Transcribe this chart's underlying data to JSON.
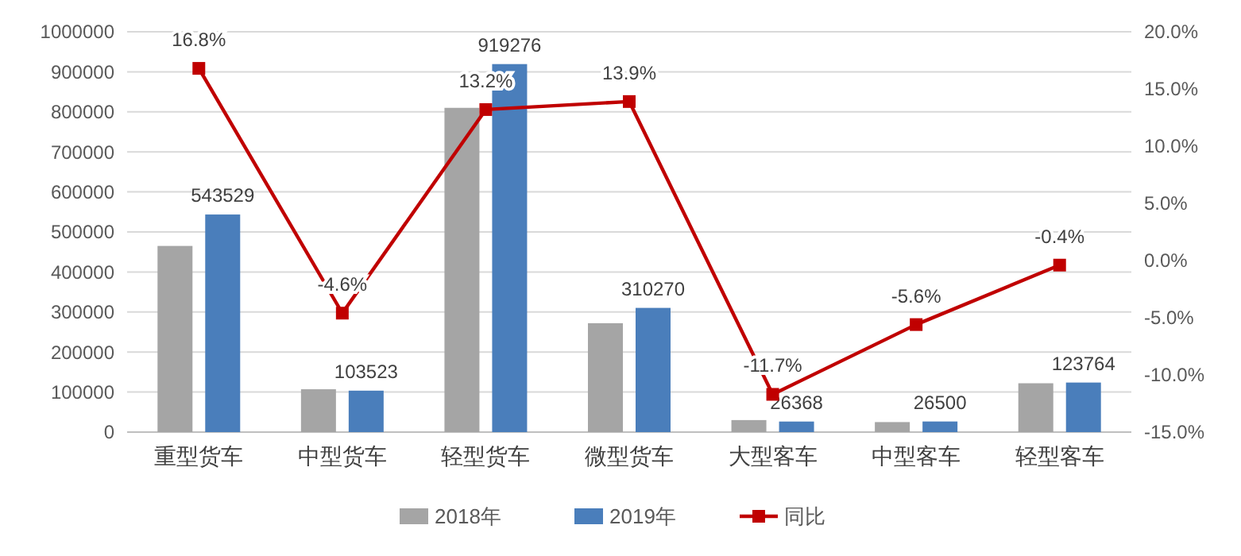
{
  "chart_data": {
    "type": "bar",
    "categories": [
      "重型货车",
      "中型货车",
      "轻型货车",
      "微型货车",
      "大型客车",
      "中型客车",
      "轻型客车"
    ],
    "series": [
      {
        "name": "2018年",
        "color": "#a5a5a5",
        "values": [
          465000,
          107000,
          810000,
          272000,
          30000,
          25000,
          122000
        ]
      },
      {
        "name": "2019年",
        "color": "#4a7ebb",
        "values": [
          543529,
          103523,
          919276,
          310270,
          26368,
          26500,
          123764
        ],
        "value_labels": [
          "543529",
          "103523",
          "919276",
          "310270",
          "26368",
          "26500",
          "123764"
        ]
      },
      {
        "name": "同比",
        "type": "line",
        "axis": "y2",
        "color": "#c00000",
        "values": [
          16.8,
          -4.6,
          13.2,
          13.9,
          -11.7,
          -5.6,
          -0.4
        ],
        "value_labels": [
          "16.8%",
          "-4.6%",
          "13.2%",
          "13.9%",
          "-11.7%",
          "-5.6%",
          "-0.4%"
        ]
      }
    ],
    "ylim": [
      0,
      1000000
    ],
    "yticks": [
      0,
      100000,
      200000,
      300000,
      400000,
      500000,
      600000,
      700000,
      800000,
      900000,
      1000000
    ],
    "y2lim": [
      -15,
      20
    ],
    "y2ticks": [
      {
        "value": -15,
        "label": "-15.0%"
      },
      {
        "value": -10,
        "label": "-10.0%"
      },
      {
        "value": -5,
        "label": "-5.0%"
      },
      {
        "value": 0,
        "label": "0.0%"
      },
      {
        "value": 5,
        "label": "5.0%"
      },
      {
        "value": 10,
        "label": "10.0%"
      },
      {
        "value": 15,
        "label": "15.0%"
      },
      {
        "value": 20,
        "label": "20.0%"
      }
    ],
    "grid": "y",
    "legend": "bottom",
    "marker": "square",
    "line_style": "solid"
  }
}
